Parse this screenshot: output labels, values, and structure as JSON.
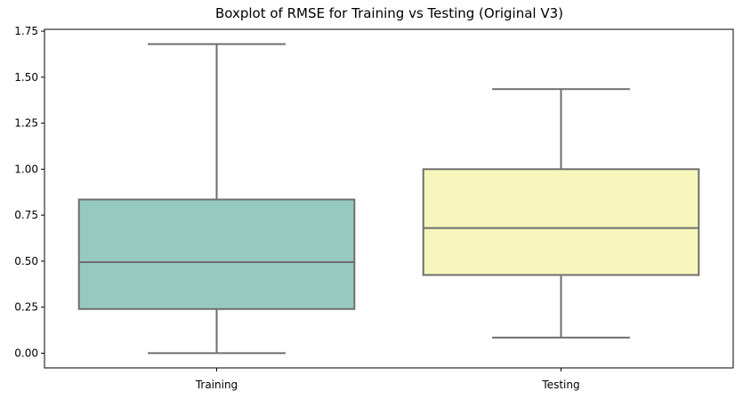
{
  "chart_data": {
    "type": "boxplot",
    "title": "Boxplot of RMSE for Training vs Testing (Original V3)",
    "xlabel": "",
    "ylabel": "",
    "categories": [
      "Training",
      "Testing"
    ],
    "boxes": [
      {
        "category": "Training",
        "whisker_low": 0.0,
        "q1": 0.24,
        "median": 0.495,
        "q3": 0.835,
        "whisker_high": 1.68,
        "color": "#96cac0"
      },
      {
        "category": "Testing",
        "whisker_low": 0.085,
        "q1": 0.425,
        "median": 0.68,
        "q3": 1.0,
        "whisker_high": 1.435,
        "color": "#f6f6bc"
      }
    ],
    "ylim": [
      -0.08,
      1.76
    ],
    "yticks": [
      "0.00",
      "0.25",
      "0.50",
      "0.75",
      "1.00",
      "1.25",
      "1.50",
      "1.75"
    ],
    "line_color": "#6e6e6e",
    "grid": false,
    "legend": "none"
  }
}
